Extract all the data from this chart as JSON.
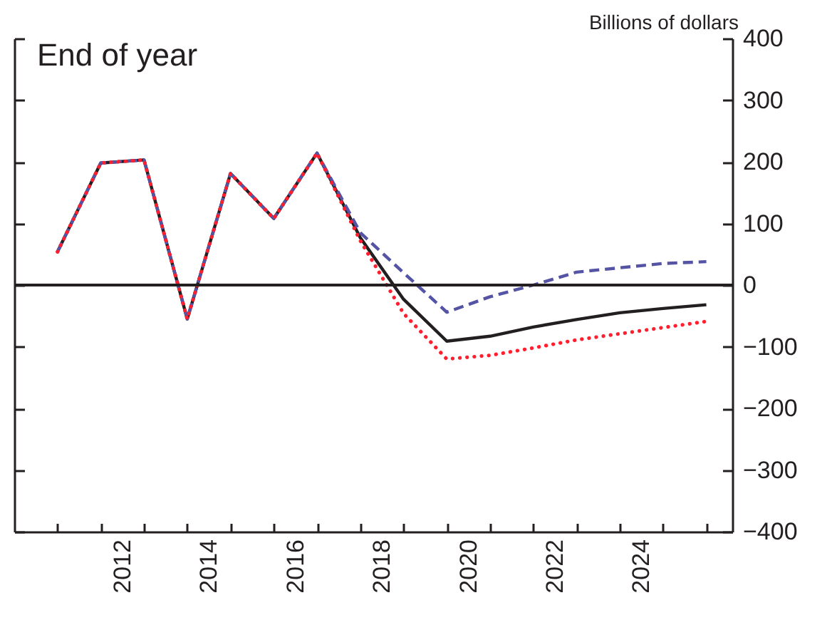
{
  "chart_data": {
    "type": "line",
    "title": "End of year",
    "ylabel": "Billions of dollars",
    "x": [
      2011,
      2012,
      2013,
      2014,
      2015,
      2016,
      2017,
      2018,
      2019,
      2020,
      2021,
      2022,
      2023,
      2024,
      2025,
      2026
    ],
    "series": [
      {
        "color": "#231f20",
        "line_style": "solid",
        "values": [
          54,
          198,
          203,
          -55,
          181,
          108,
          214,
          77,
          -23,
          -91,
          -83,
          -68,
          -56,
          -45,
          -38,
          -32
        ]
      },
      {
        "color": "#5553a4",
        "line_style": "dashed",
        "values": [
          54,
          198,
          203,
          -55,
          181,
          108,
          214,
          85,
          20,
          -44,
          -19,
          0,
          21,
          28,
          35,
          38
        ]
      },
      {
        "color": "#ff1f2f",
        "line_style": "dotted",
        "values": [
          54,
          198,
          203,
          -55,
          181,
          108,
          214,
          72,
          -46,
          -120,
          -114,
          -102,
          -89,
          -79,
          -69,
          -59
        ]
      }
    ],
    "xlim": [
      2010,
      2026.6
    ],
    "xticks": [
      {
        "value": 2011,
        "label": null
      },
      {
        "value": 2012,
        "label": null
      },
      {
        "value": 2012.5,
        "label": "2012"
      },
      {
        "value": 2013,
        "label": null
      },
      {
        "value": 2014,
        "label": null
      },
      {
        "value": 2014.5,
        "label": "2014"
      },
      {
        "value": 2015,
        "label": null
      },
      {
        "value": 2016,
        "label": null
      },
      {
        "value": 2016.5,
        "label": "2016"
      },
      {
        "value": 2017,
        "label": null
      },
      {
        "value": 2018,
        "label": null
      },
      {
        "value": 2018.5,
        "label": "2018"
      },
      {
        "value": 2019,
        "label": null
      },
      {
        "value": 2020,
        "label": null
      },
      {
        "value": 2020.5,
        "label": "2020"
      },
      {
        "value": 2021,
        "label": null
      },
      {
        "value": 2022,
        "label": null
      },
      {
        "value": 2022.5,
        "label": "2022"
      },
      {
        "value": 2023,
        "label": null
      },
      {
        "value": 2024,
        "label": null
      },
      {
        "value": 2024.5,
        "label": "2024"
      },
      {
        "value": 2025,
        "label": null
      },
      {
        "value": 2026,
        "label": null
      }
    ],
    "ylim": [
      -400,
      400
    ],
    "yticks": [
      {
        "value": -400,
        "label": "−400"
      },
      {
        "value": -300,
        "label": "−300"
      },
      {
        "value": -200,
        "label": "−200"
      },
      {
        "value": -100,
        "label": "−100"
      },
      0,
      100,
      200,
      300,
      400
    ],
    "ref_lines": [
      {
        "axis": "y",
        "value": 0,
        "color": "#231f20"
      }
    ],
    "grid": false,
    "marker": "none"
  }
}
